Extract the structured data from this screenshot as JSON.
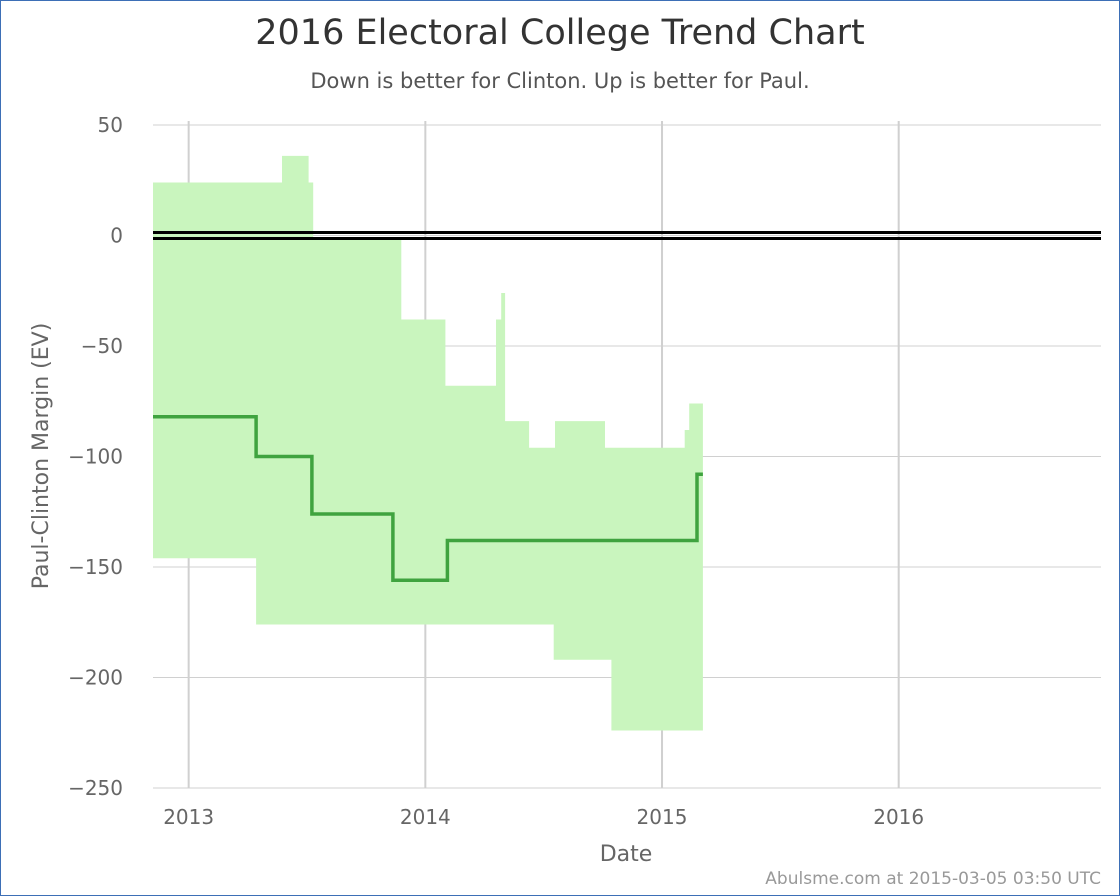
{
  "chart_data": {
    "type": "area",
    "title": "2016 Electoral College Trend Chart",
    "subtitle": "Down is better for Clinton. Up is better for Paul.",
    "xlabel": "Date",
    "ylabel": "Paul-Clinton Margin (EV)",
    "xlim": [
      "2012-11-07",
      "2016-11-08"
    ],
    "ylim": [
      -250,
      50
    ],
    "x_ticks": [
      "2013",
      "2014",
      "2015",
      "2016"
    ],
    "y_ticks": [
      50,
      0,
      -50,
      -100,
      -150,
      -200,
      -250
    ],
    "grid": true,
    "colors": {
      "line": "#3fa33f",
      "band": "#c9f5be",
      "zero_line": "#000000",
      "grid": "#d0d0d0",
      "frame": "#3d6fb6"
    },
    "series": [
      {
        "type": "line",
        "step": true,
        "points": [
          [
            "2012-11-07",
            -82
          ],
          [
            "2013-04-15",
            -100
          ],
          [
            "2013-07-10",
            -126
          ],
          [
            "2013-11-12",
            -156
          ],
          [
            "2014-02-04",
            -138
          ],
          [
            "2015-02-24",
            -108
          ],
          [
            "2015-03-05",
            -108
          ]
        ]
      },
      {
        "type": "band",
        "step": true,
        "upper": [
          [
            "2012-11-07",
            24
          ],
          [
            "2013-05-25",
            36
          ],
          [
            "2013-07-05",
            24
          ],
          [
            "2013-07-12",
            -2
          ],
          [
            "2013-11-25",
            -38
          ],
          [
            "2014-02-01",
            -68
          ],
          [
            "2014-04-20",
            -38
          ],
          [
            "2014-04-28",
            -26
          ],
          [
            "2014-05-04",
            -84
          ],
          [
            "2014-06-10",
            -96
          ],
          [
            "2014-07-20",
            -84
          ],
          [
            "2014-10-05",
            -96
          ],
          [
            "2015-02-05",
            -88
          ],
          [
            "2015-02-12",
            -76
          ],
          [
            "2015-03-05",
            -76
          ]
        ],
        "lower": [
          [
            "2012-11-07",
            -146
          ],
          [
            "2013-04-15",
            -176
          ],
          [
            "2014-07-18",
            -192
          ],
          [
            "2014-10-15",
            -224
          ],
          [
            "2015-03-05",
            -224
          ]
        ]
      }
    ],
    "reference_lines": [
      0
    ]
  },
  "footer": {
    "credit": "Abulsme.com at 2015-03-05 03:50 UTC"
  }
}
